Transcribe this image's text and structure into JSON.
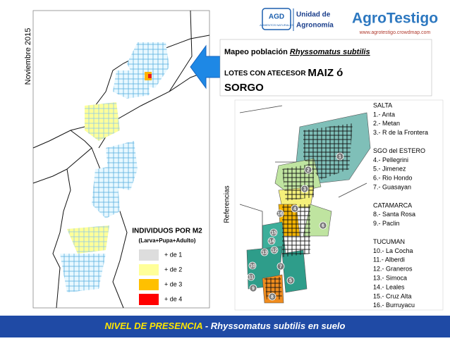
{
  "side_label": "Noviembre 2015",
  "logos": {
    "agd": "AGD",
    "agd_sub": "ALIMENTOS NATURALES",
    "unit_line1": "Unidad de",
    "unit_line2": "Agronomía",
    "agrotestigo": "AgroTestigo",
    "url": "www.agrotestigo.crowdmap.com"
  },
  "legend": {
    "title": "INDIVIDUOS POR M2",
    "subtitle": "(Larva+Pupa+Adulto)",
    "items": [
      "+ de 1",
      "+ de 2",
      "+ de 3",
      "+ de 4"
    ]
  },
  "heading": {
    "line1_prefix": "Mapeo población ",
    "line1_species": "Rhyssomatus subtilis",
    "line2": "LOTES CON ATECESOR ",
    "line2_big": "MAIZ ó",
    "line3": "SORGO"
  },
  "references_label": "Referencias",
  "map_numbers": [
    "1",
    "2",
    "3",
    "4",
    "5",
    "6",
    "7",
    "8",
    "9",
    "10",
    "11",
    "12",
    "13",
    "14",
    "15",
    "16"
  ],
  "references": [
    {
      "group": "SALTA",
      "items": [
        "1.- Anta",
        "2.- Metan",
        "3.- R de la Frontera"
      ]
    },
    {
      "group": "SGO del ESTERO",
      "items": [
        "4.- Pellegrini",
        "5.- Jimenez",
        "6.- Rio Hondo",
        "7.- Guasayan"
      ]
    },
    {
      "group": "CATAMARCA",
      "items": [
        "8.- Santa Rosa",
        "9.- Paclin"
      ]
    },
    {
      "group": "TUCUMAN",
      "items": [
        "10.- La Cocha",
        "11.- Alberdi",
        "12.- Graneros",
        "13.- Simoca",
        "14.- Leales",
        "15.- Cruz Alta",
        "16.- Burruyacu"
      ]
    }
  ],
  "footer": {
    "highlight": "NIVEL DE PRESENCIA",
    "rest": " - Rhyssomatus subtilis en suelo"
  }
}
